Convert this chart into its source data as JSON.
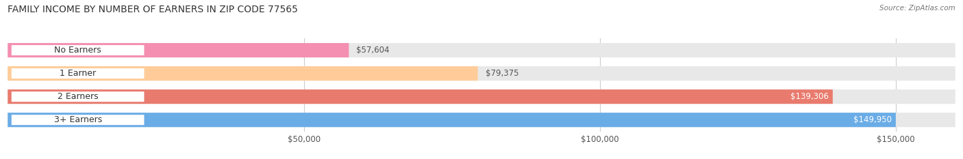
{
  "title": "FAMILY INCOME BY NUMBER OF EARNERS IN ZIP CODE 77565",
  "source": "Source: ZipAtlas.com",
  "categories": [
    "No Earners",
    "1 Earner",
    "2 Earners",
    "3+ Earners"
  ],
  "values": [
    57604,
    79375,
    139306,
    149950
  ],
  "bar_colors": [
    "#f48fb1",
    "#ffcc99",
    "#e87b6e",
    "#6aace6"
  ],
  "bar_bg_color": "#e8e8e8",
  "x_max": 160000,
  "x_ticks": [
    50000,
    100000,
    150000
  ],
  "x_tick_labels": [
    "$50,000",
    "$100,000",
    "$150,000"
  ],
  "fig_width": 14.06,
  "fig_height": 2.33,
  "background_color": "#ffffff",
  "bar_height": 0.6,
  "title_fontsize": 10,
  "label_fontsize": 9.0,
  "value_fontsize": 8.5,
  "tick_fontsize": 8.5
}
